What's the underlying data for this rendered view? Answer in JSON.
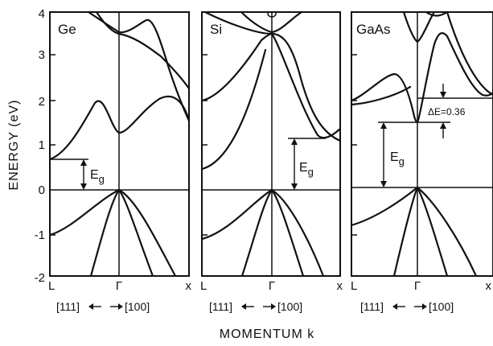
{
  "figure": {
    "y_axis_label": "ENERGY (eV)",
    "x_axis_label": "MOMENTUM k",
    "y_ticks": [
      "4",
      "3",
      "2",
      "1",
      "0",
      "-1",
      "-2"
    ],
    "panels": [
      {
        "material": "Ge",
        "tick_labels": [
          "L",
          "Γ",
          "x"
        ],
        "direction_left": "[111]",
        "direction_right": "[100]",
        "gap_label": "E",
        "gap_subscript": "g"
      },
      {
        "material": "Si",
        "tick_labels": [
          "L",
          "Γ",
          "x"
        ],
        "direction_left": "[111]",
        "direction_right": "[100]",
        "gap_label": "E",
        "gap_subscript": "g"
      },
      {
        "material": "GaAs",
        "tick_labels": [
          "L",
          "Γ",
          "x"
        ],
        "direction_left": "[111]",
        "direction_right": "[100]",
        "gap_label": "E",
        "gap_subscript": "g",
        "delta_label": "ΔE=0.36"
      }
    ]
  }
}
